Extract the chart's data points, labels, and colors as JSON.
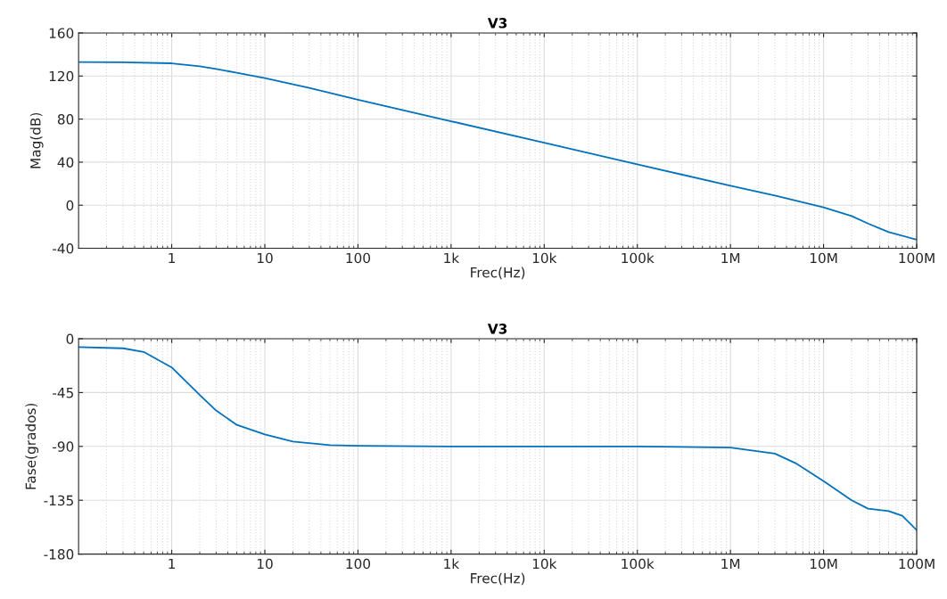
{
  "chart_data": [
    {
      "type": "line",
      "title": "V3",
      "xlabel": "Frec(Hz)",
      "ylabel": "Mag(dB)",
      "log": "x",
      "grid": true,
      "xlim": [
        0.1,
        100000000
      ],
      "xticks": [
        {
          "value": 1,
          "label": "1"
        },
        {
          "value": 10,
          "label": "10"
        },
        {
          "value": 100,
          "label": "100"
        },
        {
          "value": 1000,
          "label": "1k"
        },
        {
          "value": 10000,
          "label": "10k"
        },
        {
          "value": 100000,
          "label": "100k"
        },
        {
          "value": 1000000,
          "label": "1M"
        },
        {
          "value": 10000000,
          "label": "10M"
        },
        {
          "value": 100000000,
          "label": "100M"
        }
      ],
      "ylim": [
        -40,
        160
      ],
      "yticks": [
        -40,
        0,
        40,
        80,
        120,
        160
      ],
      "x": [
        0.1,
        0.3,
        1,
        2,
        3,
        5,
        10,
        30,
        100,
        1000,
        10000,
        100000,
        1000000,
        3000000,
        10000000,
        20000000,
        30000000,
        50000000,
        100000000
      ],
      "series": [
        {
          "color": "#0072bd",
          "values": [
            133,
            132.8,
            131.8,
            129,
            126.5,
            123,
            118,
            109,
            98,
            78,
            58,
            38,
            18,
            9,
            -2,
            -10,
            -17,
            -25,
            -32
          ]
        }
      ]
    },
    {
      "type": "line",
      "title": "V3",
      "xlabel": "Frec(Hz)",
      "ylabel": "Fase(grados)",
      "log": "x",
      "grid": true,
      "xlim": [
        0.1,
        100000000
      ],
      "xticks": [
        {
          "value": 1,
          "label": "1"
        },
        {
          "value": 10,
          "label": "10"
        },
        {
          "value": 100,
          "label": "100"
        },
        {
          "value": 1000,
          "label": "1k"
        },
        {
          "value": 10000,
          "label": "10k"
        },
        {
          "value": 100000,
          "label": "100k"
        },
        {
          "value": 1000000,
          "label": "1M"
        },
        {
          "value": 10000000,
          "label": "10M"
        },
        {
          "value": 100000000,
          "label": "100M"
        }
      ],
      "ylim": [
        -180,
        0
      ],
      "yticks": [
        -180,
        -135,
        -90,
        -45,
        0
      ],
      "x": [
        0.1,
        0.3,
        0.5,
        1,
        2,
        3,
        5,
        10,
        20,
        50,
        100,
        1000,
        10000,
        100000,
        1000000,
        3000000,
        5000000,
        10000000,
        20000000,
        30000000,
        50000000,
        70000000,
        100000000
      ],
      "series": [
        {
          "color": "#0072bd",
          "values": [
            -7,
            -8,
            -11,
            -24,
            -47,
            -60,
            -72,
            -80,
            -86,
            -89,
            -89.5,
            -90,
            -90,
            -90,
            -91,
            -96,
            -104,
            -119,
            -135,
            -142,
            -144,
            -148,
            -160
          ]
        }
      ]
    }
  ]
}
